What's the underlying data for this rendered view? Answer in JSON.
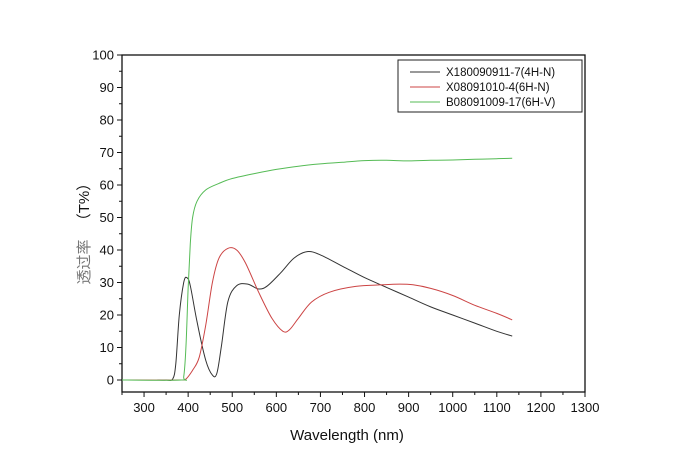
{
  "chart_data": {
    "type": "line",
    "title": "",
    "xlabel": "Wavelength (nm)",
    "ylabel": "透过率 （T%）",
    "ylabel_parts": {
      "cn": "透过率",
      "en": "（T%）"
    },
    "xlim": [
      250,
      1300
    ],
    "ylim": [
      -3,
      100
    ],
    "xticks": [
      300,
      400,
      500,
      600,
      700,
      800,
      900,
      1000,
      1100,
      1200,
      1300
    ],
    "yticks": [
      0,
      10,
      20,
      30,
      40,
      50,
      60,
      70,
      80,
      90,
      100
    ],
    "grid": false,
    "legend_position": "upper right",
    "series": [
      {
        "name": "X180090911-7(4H-N)",
        "color": "#333333",
        "x": [
          330,
          350,
          365,
          372,
          380,
          390,
          397,
          405,
          420,
          440,
          455,
          465,
          475,
          490,
          510,
          535,
          560,
          580,
          610,
          640,
          670,
          700,
          750,
          800,
          850,
          900,
          950,
          1000,
          1050,
          1100,
          1135
        ],
        "y": [
          0,
          0,
          0.3,
          5,
          20,
          30,
          31.5,
          29,
          18,
          6,
          1.5,
          2,
          10,
          24,
          29,
          29.5,
          28,
          29,
          33,
          37.5,
          39.5,
          38.5,
          35,
          31.5,
          28.5,
          25.5,
          22.5,
          20,
          17.5,
          15,
          13.5
        ]
      },
      {
        "name": "X08091010-4(6H-N)",
        "color": "#cc4444",
        "x": [
          250,
          380,
          395,
          410,
          425,
          440,
          455,
          470,
          490,
          510,
          530,
          560,
          590,
          615,
          630,
          650,
          680,
          720,
          780,
          840,
          880,
          910,
          950,
          1000,
          1050,
          1100,
          1135
        ],
        "y": [
          0,
          0,
          0.3,
          3,
          7,
          17,
          30,
          37.5,
          40.5,
          40,
          36,
          27,
          19,
          15,
          15.5,
          19,
          24,
          27,
          28.8,
          29.3,
          29.5,
          29.3,
          28.2,
          26,
          23,
          20.5,
          18.5
        ]
      },
      {
        "name": "B08091009-17(6H-V)",
        "color": "#55bb55",
        "x": [
          250,
          385,
          390,
          395,
          400,
          405,
          410,
          420,
          440,
          470,
          500,
          550,
          600,
          650,
          700,
          750,
          800,
          850,
          900,
          950,
          1000,
          1050,
          1100,
          1135
        ],
        "y": [
          0,
          0,
          1,
          10,
          28,
          42,
          50,
          55,
          58.5,
          60.5,
          62,
          63.5,
          64.8,
          65.8,
          66.5,
          67,
          67.5,
          67.6,
          67.4,
          67.6,
          67.7,
          67.9,
          68.1,
          68.2
        ]
      }
    ]
  },
  "legend": {
    "items": [
      {
        "label": "X180090911-7(4H-N)",
        "color": "#333333"
      },
      {
        "label": "X08091010-4(6H-N)",
        "color": "#cc4444"
      },
      {
        "label": "B08091009-17(6H-V)",
        "color": "#55bb55"
      }
    ]
  },
  "axes": {
    "x_title": "Wavelength (nm)",
    "y_title_cn": "透过率",
    "y_title_en": "（T%）"
  }
}
